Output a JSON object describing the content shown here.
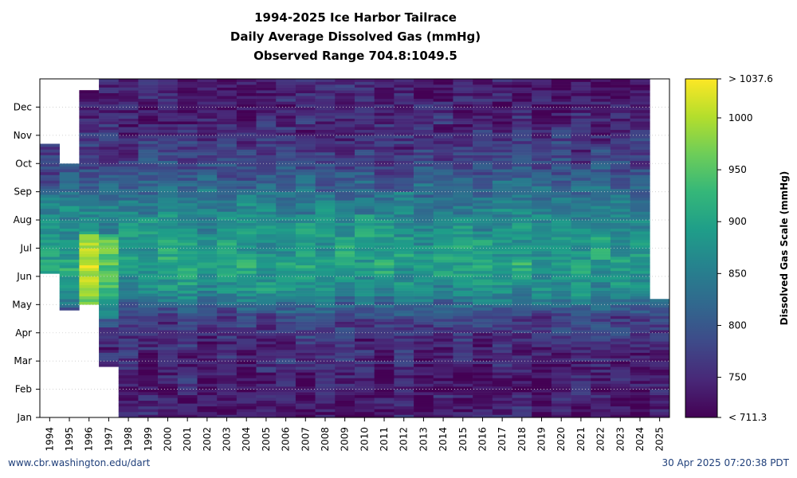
{
  "chart_data": {
    "type": "heatmap",
    "title": "1994-2025 Ice Harbor Tailrace",
    "subtitle": "Daily Average Dissolved Gas (mmHg)",
    "range_text": "Observed Range 704.8:1049.5",
    "observed_min": 704.8,
    "observed_max": 1049.5,
    "x_categories": [
      "1994",
      "1995",
      "1996",
      "1997",
      "1998",
      "1999",
      "2000",
      "2001",
      "2002",
      "2003",
      "2004",
      "2005",
      "2006",
      "2007",
      "2008",
      "2009",
      "2010",
      "2011",
      "2012",
      "2013",
      "2014",
      "2015",
      "2016",
      "2017",
      "2018",
      "2019",
      "2020",
      "2021",
      "2022",
      "2023",
      "2024",
      "2025"
    ],
    "y_ticks": [
      "Jan",
      "Feb",
      "Mar",
      "Apr",
      "May",
      "Jun",
      "Jul",
      "Aug",
      "Sep",
      "Oct",
      "Nov",
      "Dec"
    ],
    "y_axis": "day of year, Jan at bottom, Dec at top",
    "colorbar": {
      "label": "Dissolved Gas Scale (mmHg)",
      "min": 711.3,
      "max": 1037.6,
      "min_label": "< 711.3",
      "max_label": "> 1037.6",
      "ticks": [
        750,
        800,
        850,
        900,
        950,
        1000
      ],
      "colormap": "viridis"
    },
    "grid": true,
    "seasonal_profile_mmHg": [
      {
        "month": "Jan",
        "typical": 735
      },
      {
        "month": "Feb",
        "typical": 740
      },
      {
        "month": "Mar",
        "typical": 750
      },
      {
        "month": "Apr",
        "typical": 775
      },
      {
        "month": "May",
        "typical": 870
      },
      {
        "month": "Jun",
        "typical": 900
      },
      {
        "month": "Jul",
        "typical": 880
      },
      {
        "month": "Aug",
        "typical": 855
      },
      {
        "month": "Sep",
        "typical": 800
      },
      {
        "month": "Oct",
        "typical": 765
      },
      {
        "month": "Nov",
        "typical": 745
      },
      {
        "month": "Dec",
        "typical": 735
      }
    ],
    "year_coverage": [
      {
        "year": "1994",
        "start_month": 5.1,
        "end_month": 9.7
      },
      {
        "year": "1995",
        "start_month": 3.8,
        "end_month": 9.0
      },
      {
        "year": "1996",
        "start_month": 4.0,
        "end_month": 11.6
      },
      {
        "year": "1997",
        "start_month": 1.8,
        "end_month": 12.0
      },
      {
        "year": "2025",
        "start_month": 0.0,
        "end_month": 4.2
      }
    ]
  },
  "footer": {
    "left": "www.cbr.washington.edu/dart",
    "right": "30 Apr 2025 07:20:38 PDT"
  }
}
